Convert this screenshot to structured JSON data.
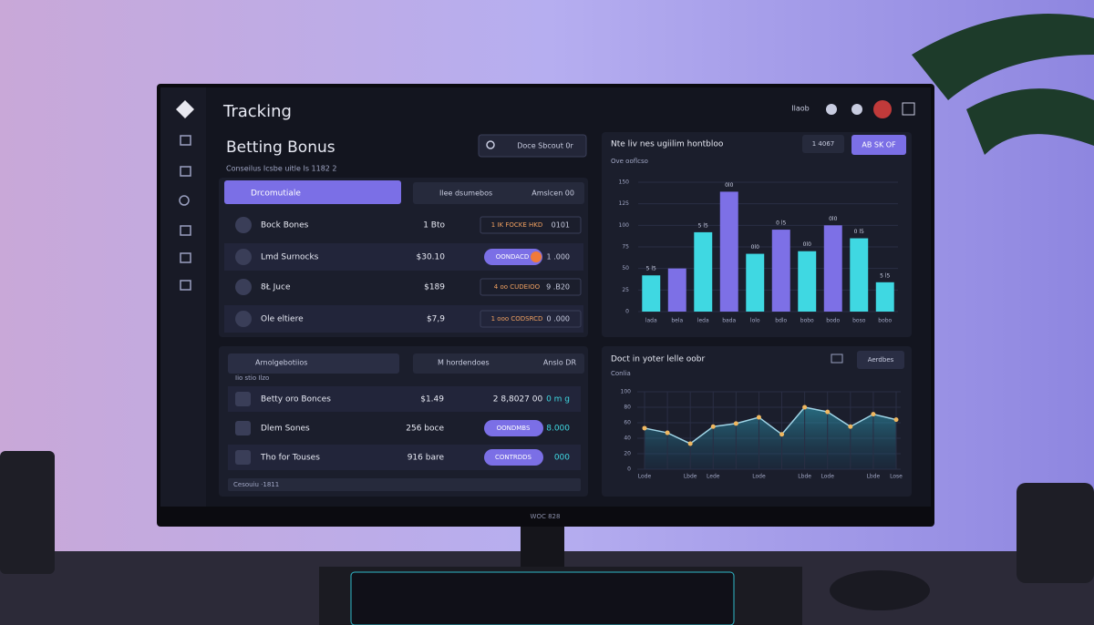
{
  "header": {
    "title": "Tracking",
    "status": "Ilaob"
  },
  "page": {
    "title": "Betting Bonus",
    "subtitle": "Conseilus Icsbe uitle Is 1182 2",
    "search": "Doce Sbcout 0r"
  },
  "bonus_table": {
    "tab_active": "Drcomutiale",
    "tab": "Ilee dsumebos",
    "tab_right": "Amslcen 00",
    "rows": [
      [
        "Bock Bones",
        "1 Bto",
        "1 IK FOCKE HKD",
        "0101"
      ],
      [
        "Lmd Surnocks",
        "$30.10",
        "OONDACD",
        "1 .000"
      ],
      [
        "8Ł Juce",
        "$189",
        "4 oo CUDEIOO",
        "9 .B20"
      ],
      [
        "Ole eltiere",
        "$7,9",
        "1 ooo CODSRCD",
        "0 .000"
      ]
    ]
  },
  "offers_table": {
    "tab_active": "Arnolgebotiios",
    "tab": "M hordendoes",
    "tab_right": "Anslo DR",
    "caption": "Iio stio Ilzo",
    "rows": [
      [
        "Betty oro Bonces",
        "$1.49",
        "2 8,8027 00",
        "0 m g"
      ],
      [
        "Dlem Sones",
        "256 boce",
        "OONDMBS",
        "8.000"
      ],
      [
        "Tho for Touses",
        "916 bare",
        "CONTRDDS",
        "000"
      ]
    ],
    "footer": "Cesouiu ·1811"
  },
  "chart_data": [
    {
      "type": "bar",
      "title": "Nte liv nes ugiilim hontbloo",
      "subtitle": "Ove ooflcso",
      "buttons": [
        "1 4067",
        "AB SK OF"
      ],
      "categories": [
        "lada",
        "bela",
        "leda",
        "bada",
        "lolo",
        "bdlo",
        "bobo",
        "bodo",
        "boso",
        "bobo"
      ],
      "values": [
        42,
        50,
        92,
        139,
        67,
        95,
        70,
        100,
        85,
        34
      ],
      "value_labels": [
        "5 l5",
        "",
        "5 l5",
        "0l0",
        "0l0",
        "0 l5",
        "0l0",
        "0l0",
        "0 l5",
        "5 l5"
      ],
      "colors": [
        "#3fd8e2",
        "#7d70e6",
        "#3fd8e2",
        "#7d70e6",
        "#3fd8e2",
        "#7d70e6",
        "#3fd8e2",
        "#7d70e6",
        "#3fd8e2",
        "#3fd8e2"
      ],
      "ylim": [
        0,
        150
      ],
      "yticks": [
        0,
        25,
        50,
        75,
        100,
        125,
        150
      ],
      "grid": true
    },
    {
      "type": "line",
      "title": "Doct in yoter lelle oobr",
      "subtitle": "Conlia",
      "button": "Aerdbes",
      "categories": [
        "Lode",
        null,
        "Lbde",
        "Lede",
        null,
        "Lode",
        null,
        "Lbde",
        "Lode",
        null,
        "Lbde",
        "Lose"
      ],
      "values": [
        53,
        47,
        33,
        55,
        59,
        67,
        45,
        80,
        74,
        55,
        71,
        64
      ],
      "color": "#9fd4e6",
      "point_color": "#f0b860",
      "ylim": [
        0,
        100
      ],
      "yticks": [
        0,
        20,
        40,
        60,
        80,
        100
      ],
      "grid": true
    }
  ],
  "monitor": {
    "brand": "WOC 828"
  }
}
